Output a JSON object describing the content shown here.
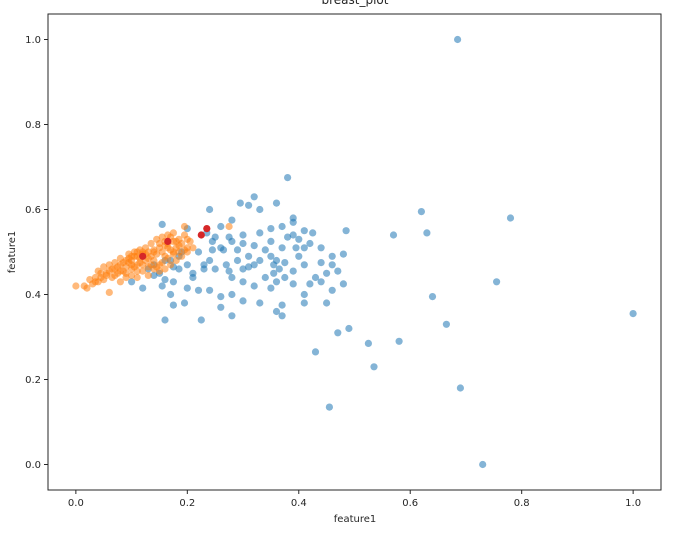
{
  "chart_data": {
    "type": "scatter",
    "title": "breast_plot",
    "xlabel": "feature1",
    "ylabel": "feature1",
    "xlim": [
      -0.05,
      1.05
    ],
    "ylim": [
      -0.06,
      1.06
    ],
    "x_ticks": [
      "0.0",
      "0.2",
      "0.4",
      "0.6",
      "0.8",
      "1.0"
    ],
    "y_ticks": [
      "0.0",
      "0.2",
      "0.4",
      "0.6",
      "0.8",
      "1.0"
    ],
    "grid": false,
    "series": [
      {
        "color": "#1f77b4",
        "alpha": 0.55,
        "points": [
          [
            0.685,
            1.0
          ],
          [
            0.73,
            0.0
          ],
          [
            1.0,
            0.355
          ],
          [
            0.78,
            0.58
          ],
          [
            0.62,
            0.595
          ],
          [
            0.63,
            0.545
          ],
          [
            0.57,
            0.54
          ],
          [
            0.755,
            0.43
          ],
          [
            0.64,
            0.395
          ],
          [
            0.665,
            0.33
          ],
          [
            0.69,
            0.18
          ],
          [
            0.58,
            0.29
          ],
          [
            0.525,
            0.285
          ],
          [
            0.535,
            0.23
          ],
          [
            0.49,
            0.32
          ],
          [
            0.47,
            0.31
          ],
          [
            0.455,
            0.135
          ],
          [
            0.43,
            0.265
          ],
          [
            0.38,
            0.675
          ],
          [
            0.32,
            0.63
          ],
          [
            0.36,
            0.615
          ],
          [
            0.31,
            0.61
          ],
          [
            0.33,
            0.6
          ],
          [
            0.295,
            0.615
          ],
          [
            0.24,
            0.6
          ],
          [
            0.28,
            0.575
          ],
          [
            0.26,
            0.56
          ],
          [
            0.39,
            0.58
          ],
          [
            0.39,
            0.57
          ],
          [
            0.37,
            0.56
          ],
          [
            0.41,
            0.55
          ],
          [
            0.425,
            0.545
          ],
          [
            0.485,
            0.55
          ],
          [
            0.35,
            0.555
          ],
          [
            0.33,
            0.545
          ],
          [
            0.3,
            0.54
          ],
          [
            0.275,
            0.535
          ],
          [
            0.25,
            0.535
          ],
          [
            0.155,
            0.565
          ],
          [
            0.2,
            0.555
          ],
          [
            0.235,
            0.545
          ],
          [
            0.245,
            0.525
          ],
          [
            0.28,
            0.525
          ],
          [
            0.3,
            0.52
          ],
          [
            0.32,
            0.515
          ],
          [
            0.35,
            0.525
          ],
          [
            0.38,
            0.535
          ],
          [
            0.4,
            0.53
          ],
          [
            0.39,
            0.54
          ],
          [
            0.42,
            0.52
          ],
          [
            0.44,
            0.51
          ],
          [
            0.26,
            0.51
          ],
          [
            0.22,
            0.5
          ],
          [
            0.245,
            0.505
          ],
          [
            0.31,
            0.49
          ],
          [
            0.33,
            0.48
          ],
          [
            0.35,
            0.49
          ],
          [
            0.36,
            0.48
          ],
          [
            0.375,
            0.475
          ],
          [
            0.4,
            0.49
          ],
          [
            0.41,
            0.47
          ],
          [
            0.44,
            0.475
          ],
          [
            0.46,
            0.49
          ],
          [
            0.48,
            0.495
          ],
          [
            0.46,
            0.47
          ],
          [
            0.39,
            0.455
          ],
          [
            0.375,
            0.44
          ],
          [
            0.355,
            0.45
          ],
          [
            0.32,
            0.47
          ],
          [
            0.29,
            0.48
          ],
          [
            0.27,
            0.47
          ],
          [
            0.24,
            0.48
          ],
          [
            0.23,
            0.46
          ],
          [
            0.2,
            0.47
          ],
          [
            0.185,
            0.46
          ],
          [
            0.17,
            0.48
          ],
          [
            0.21,
            0.45
          ],
          [
            0.25,
            0.46
          ],
          [
            0.28,
            0.44
          ],
          [
            0.3,
            0.43
          ],
          [
            0.32,
            0.42
          ],
          [
            0.35,
            0.415
          ],
          [
            0.36,
            0.43
          ],
          [
            0.39,
            0.425
          ],
          [
            0.42,
            0.425
          ],
          [
            0.44,
            0.43
          ],
          [
            0.45,
            0.45
          ],
          [
            0.47,
            0.455
          ],
          [
            0.43,
            0.44
          ],
          [
            0.46,
            0.41
          ],
          [
            0.48,
            0.425
          ],
          [
            0.45,
            0.38
          ],
          [
            0.41,
            0.4
          ],
          [
            0.41,
            0.38
          ],
          [
            0.37,
            0.375
          ],
          [
            0.33,
            0.38
          ],
          [
            0.3,
            0.385
          ],
          [
            0.28,
            0.4
          ],
          [
            0.26,
            0.395
          ],
          [
            0.26,
            0.37
          ],
          [
            0.28,
            0.35
          ],
          [
            0.225,
            0.34
          ],
          [
            0.195,
            0.38
          ],
          [
            0.175,
            0.375
          ],
          [
            0.17,
            0.4
          ],
          [
            0.155,
            0.42
          ],
          [
            0.16,
            0.34
          ],
          [
            0.175,
            0.43
          ],
          [
            0.2,
            0.415
          ],
          [
            0.22,
            0.41
          ],
          [
            0.21,
            0.44
          ],
          [
            0.15,
            0.45
          ],
          [
            0.14,
            0.445
          ],
          [
            0.13,
            0.46
          ],
          [
            0.1,
            0.43
          ],
          [
            0.12,
            0.415
          ],
          [
            0.185,
            0.49
          ],
          [
            0.19,
            0.5
          ],
          [
            0.14,
            0.47
          ],
          [
            0.16,
            0.48
          ],
          [
            0.175,
            0.465
          ],
          [
            0.265,
            0.505
          ],
          [
            0.29,
            0.505
          ],
          [
            0.34,
            0.505
          ],
          [
            0.355,
            0.47
          ],
          [
            0.365,
            0.46
          ],
          [
            0.37,
            0.35
          ],
          [
            0.36,
            0.36
          ],
          [
            0.23,
            0.47
          ],
          [
            0.31,
            0.465
          ],
          [
            0.34,
            0.44
          ],
          [
            0.3,
            0.46
          ],
          [
            0.275,
            0.455
          ],
          [
            0.24,
            0.41
          ],
          [
            0.16,
            0.435
          ],
          [
            0.395,
            0.51
          ],
          [
            0.41,
            0.51
          ],
          [
            0.37,
            0.51
          ]
        ]
      },
      {
        "color": "#ff7f0e",
        "alpha": 0.55,
        "points": [
          [
            0.0,
            0.42
          ],
          [
            0.02,
            0.415
          ],
          [
            0.03,
            0.425
          ],
          [
            0.035,
            0.44
          ],
          [
            0.04,
            0.43
          ],
          [
            0.045,
            0.45
          ],
          [
            0.05,
            0.435
          ],
          [
            0.055,
            0.445
          ],
          [
            0.06,
            0.455
          ],
          [
            0.065,
            0.44
          ],
          [
            0.07,
            0.46
          ],
          [
            0.075,
            0.45
          ],
          [
            0.08,
            0.47
          ],
          [
            0.085,
            0.455
          ],
          [
            0.09,
            0.465
          ],
          [
            0.095,
            0.475
          ],
          [
            0.1,
            0.46
          ],
          [
            0.1,
            0.48
          ],
          [
            0.105,
            0.49
          ],
          [
            0.11,
            0.47
          ],
          [
            0.115,
            0.485
          ],
          [
            0.12,
            0.495
          ],
          [
            0.125,
            0.48
          ],
          [
            0.13,
            0.5
          ],
          [
            0.135,
            0.49
          ],
          [
            0.14,
            0.505
          ],
          [
            0.145,
            0.495
          ],
          [
            0.15,
            0.51
          ],
          [
            0.155,
            0.5
          ],
          [
            0.16,
            0.515
          ],
          [
            0.165,
            0.52
          ],
          [
            0.17,
            0.505
          ],
          [
            0.175,
            0.525
          ],
          [
            0.18,
            0.51
          ],
          [
            0.185,
            0.53
          ],
          [
            0.19,
            0.52
          ],
          [
            0.195,
            0.54
          ],
          [
            0.2,
            0.53
          ],
          [
            0.195,
            0.56
          ],
          [
            0.175,
            0.545
          ],
          [
            0.17,
            0.535
          ],
          [
            0.185,
            0.515
          ],
          [
            0.2,
            0.51
          ],
          [
            0.205,
            0.525
          ],
          [
            0.275,
            0.56
          ],
          [
            0.06,
            0.405
          ],
          [
            0.08,
            0.43
          ],
          [
            0.09,
            0.44
          ],
          [
            0.11,
            0.44
          ],
          [
            0.12,
            0.455
          ],
          [
            0.13,
            0.465
          ],
          [
            0.14,
            0.48
          ],
          [
            0.15,
            0.47
          ],
          [
            0.16,
            0.49
          ],
          [
            0.07,
            0.475
          ],
          [
            0.08,
            0.485
          ],
          [
            0.095,
            0.495
          ],
          [
            0.11,
            0.5
          ],
          [
            0.125,
            0.51
          ],
          [
            0.135,
            0.52
          ],
          [
            0.145,
            0.53
          ],
          [
            0.155,
            0.535
          ],
          [
            0.165,
            0.54
          ],
          [
            0.025,
            0.435
          ],
          [
            0.04,
            0.455
          ],
          [
            0.05,
            0.465
          ],
          [
            0.06,
            0.47
          ],
          [
            0.07,
            0.445
          ],
          [
            0.08,
            0.455
          ],
          [
            0.09,
            0.45
          ],
          [
            0.1,
            0.445
          ],
          [
            0.105,
            0.465
          ],
          [
            0.115,
            0.475
          ],
          [
            0.12,
            0.47
          ],
          [
            0.13,
            0.485
          ],
          [
            0.14,
            0.46
          ],
          [
            0.15,
            0.455
          ],
          [
            0.16,
            0.46
          ],
          [
            0.17,
            0.47
          ],
          [
            0.18,
            0.48
          ],
          [
            0.19,
            0.49
          ],
          [
            0.2,
            0.5
          ],
          [
            0.21,
            0.51
          ],
          [
            0.175,
            0.495
          ],
          [
            0.185,
            0.5
          ],
          [
            0.195,
            0.505
          ],
          [
            0.11,
            0.455
          ],
          [
            0.1,
            0.47
          ],
          [
            0.09,
            0.48
          ],
          [
            0.085,
            0.475
          ],
          [
            0.075,
            0.465
          ],
          [
            0.065,
            0.46
          ],
          [
            0.055,
            0.45
          ],
          [
            0.045,
            0.44
          ],
          [
            0.035,
            0.43
          ],
          [
            0.015,
            0.42
          ],
          [
            0.13,
            0.445
          ],
          [
            0.145,
            0.465
          ],
          [
            0.155,
            0.475
          ],
          [
            0.165,
            0.485
          ],
          [
            0.175,
            0.5
          ],
          [
            0.14,
            0.5
          ],
          [
            0.125,
            0.495
          ],
          [
            0.115,
            0.505
          ],
          [
            0.105,
            0.5
          ],
          [
            0.095,
            0.485
          ],
          [
            0.135,
            0.47
          ],
          [
            0.165,
            0.51
          ],
          [
            0.18,
            0.525
          ],
          [
            0.16,
            0.525
          ],
          [
            0.15,
            0.52
          ],
          [
            0.12,
            0.5
          ],
          [
            0.11,
            0.49
          ],
          [
            0.1,
            0.49
          ]
        ]
      },
      {
        "color": "#d62728",
        "alpha": 1.0,
        "points": [
          [
            0.235,
            0.555
          ],
          [
            0.225,
            0.54
          ],
          [
            0.165,
            0.525
          ],
          [
            0.12,
            0.49
          ]
        ]
      }
    ]
  }
}
